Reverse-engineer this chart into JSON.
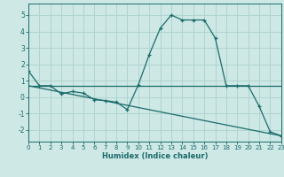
{
  "xlabel": "Humidex (Indice chaleur)",
  "bg_color": "#cde8e5",
  "grid_color": "#b0d4d0",
  "line_color": "#1a6b6b",
  "x_min": 0,
  "x_max": 23,
  "y_min": -2.7,
  "y_max": 5.7,
  "yticks": [
    -2,
    -1,
    0,
    1,
    2,
    3,
    4,
    5
  ],
  "xticks": [
    0,
    1,
    2,
    3,
    4,
    5,
    6,
    7,
    8,
    9,
    10,
    11,
    12,
    13,
    14,
    15,
    16,
    17,
    18,
    19,
    20,
    21,
    22,
    23
  ],
  "line1_x": [
    0,
    1,
    2,
    3,
    4,
    5,
    6,
    7,
    8,
    9,
    10,
    11,
    12,
    13,
    14,
    15,
    16,
    17,
    18,
    19,
    20,
    21,
    22,
    23
  ],
  "line1_y": [
    1.6,
    0.7,
    0.7,
    0.2,
    0.35,
    0.25,
    -0.15,
    -0.2,
    -0.3,
    -0.75,
    0.75,
    2.6,
    4.2,
    5.0,
    4.7,
    4.7,
    4.7,
    3.6,
    0.7,
    0.7,
    0.7,
    -0.55,
    -2.1,
    -2.35
  ],
  "line2_x": [
    0,
    23
  ],
  "line2_y": [
    0.7,
    0.7
  ],
  "line3_x": [
    0,
    23
  ],
  "line3_y": [
    0.7,
    -2.35
  ]
}
